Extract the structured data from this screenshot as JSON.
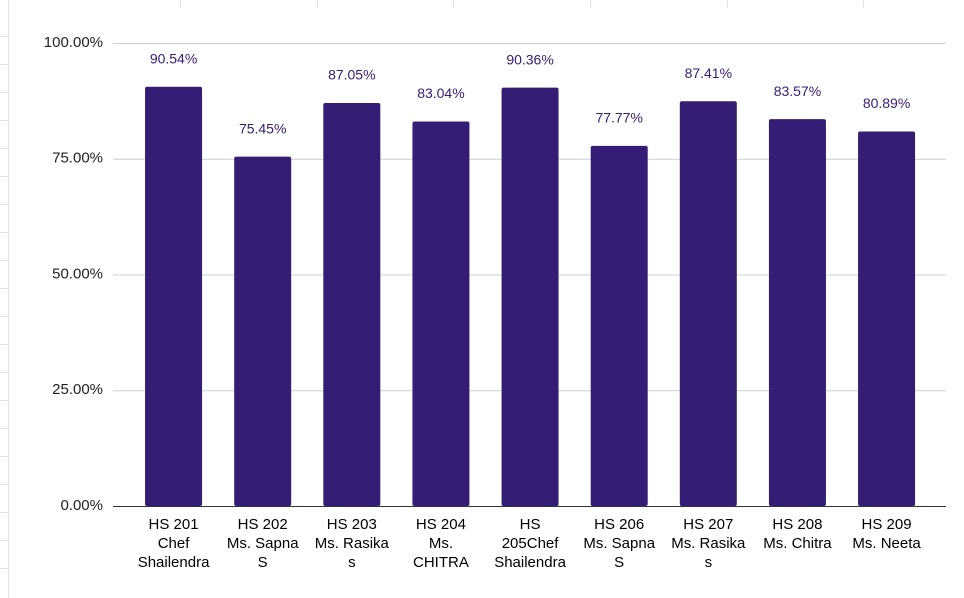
{
  "chart_data": {
    "type": "bar",
    "categories": [
      "HS  201\nChef\nShailendra",
      "HS 202\nMs. Sapna\nS",
      "HS 203\nMs. Rasika\ns",
      "HS 204\nMs.\nCHITRA",
      "HS\n205Chef\nShailendra",
      "HS 206\nMs. Sapna\nS",
      "HS 207\nMs. Rasika\ns",
      "HS 208\nMs. Chitra",
      "HS 209\nMs. Neeta"
    ],
    "values": [
      90.54,
      75.45,
      87.05,
      83.04,
      90.36,
      77.77,
      87.41,
      83.57,
      80.89
    ],
    "value_labels": [
      "90.54%",
      "75.45%",
      "87.05%",
      "83.04%",
      "90.36%",
      "77.77%",
      "87.41%",
      "83.57%",
      "80.89%"
    ],
    "color": "#351c75",
    "ylim": [
      0,
      100
    ],
    "yticks": [
      {
        "value": 0,
        "label": "0.00%"
      },
      {
        "value": 25,
        "label": "25.00%"
      },
      {
        "value": 50,
        "label": "50.00%"
      },
      {
        "value": 75,
        "label": "75.00%"
      },
      {
        "value": 100,
        "label": "100.00%"
      }
    ],
    "grid": true
  }
}
